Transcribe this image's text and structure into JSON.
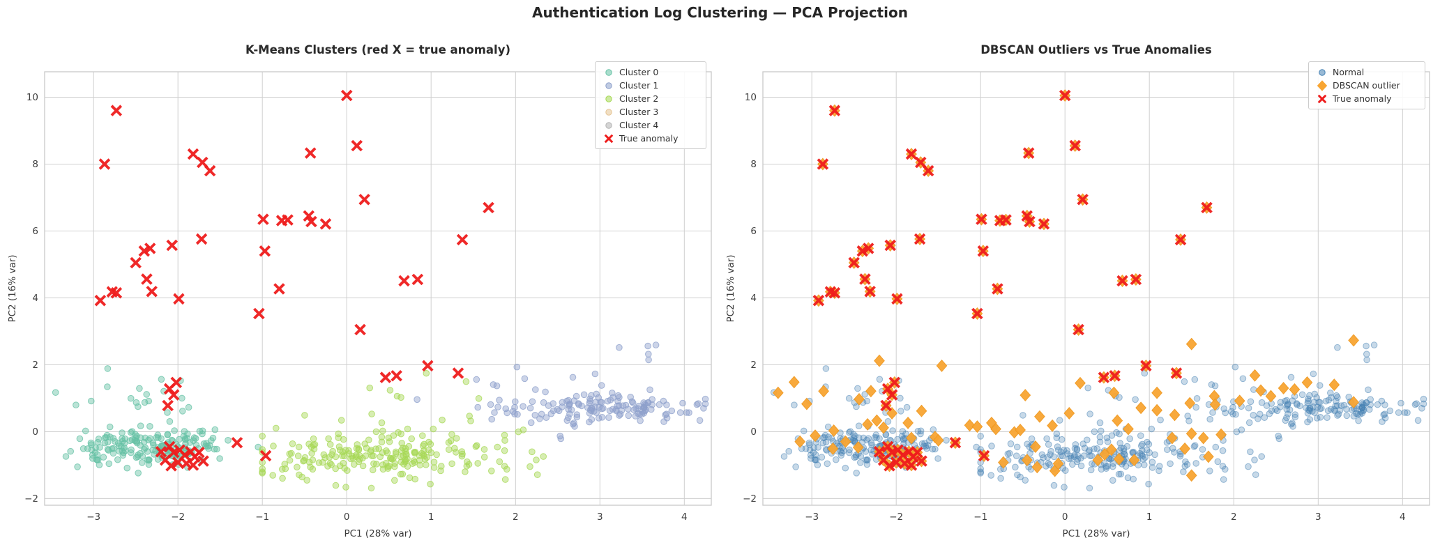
{
  "figure": {
    "suptitle": "Authentication Log Clustering — PCA Projection",
    "panels": [
      {
        "id": "kmeans",
        "title": "K-Means Clusters  (red X = true anomaly)",
        "xlabel": "PC1 (28% var)",
        "ylabel": "PC2 (16% var)",
        "legend": [
          {
            "label": "Cluster 0",
            "marker": "circle",
            "color": "#66c2a5"
          },
          {
            "label": "Cluster 1",
            "marker": "circle",
            "color": "#8da0cb"
          },
          {
            "label": "Cluster 2",
            "marker": "circle",
            "color": "#a6d854"
          },
          {
            "label": "Cluster 3",
            "marker": "circle",
            "color": "#e5c494"
          },
          {
            "label": "Cluster 4",
            "marker": "circle",
            "color": "#b3b3b3"
          },
          {
            "label": "True anomaly",
            "marker": "x",
            "color": "#ee1c1c"
          }
        ]
      },
      {
        "id": "dbscan",
        "title": "DBSCAN Outliers vs True Anomalies",
        "xlabel": "PC1 (28% var)",
        "ylabel": "PC2 (16% var)",
        "legend": [
          {
            "label": "Normal",
            "marker": "circle",
            "color": "#4682b4"
          },
          {
            "label": "DBSCAN outlier",
            "marker": "diamond",
            "color": "#f8a532"
          },
          {
            "label": "True anomaly",
            "marker": "x",
            "color": "#ee1c1c"
          }
        ]
      }
    ]
  },
  "chart_data": {
    "type": "scatter",
    "axes": {
      "xlim": [
        -3.58,
        4.32
      ],
      "ylim": [
        -2.2,
        10.76
      ],
      "xticks": [
        -3,
        -2,
        -1,
        0,
        1,
        2,
        3,
        4
      ],
      "yticks": [
        -2,
        0,
        2,
        4,
        6,
        8,
        10
      ],
      "grid": true,
      "grid_color": "#cfcfcf",
      "spine_color": "#c9c9c9"
    },
    "anomaly_color": "#ee1c1c",
    "anomalies": [
      [
        0.0,
        10.05
      ],
      [
        -2.73,
        9.6
      ],
      [
        -2.87,
        8.0
      ],
      [
        0.12,
        8.55
      ],
      [
        -1.82,
        8.3
      ],
      [
        -1.71,
        8.05
      ],
      [
        -1.62,
        7.8
      ],
      [
        -0.43,
        8.33
      ],
      [
        0.21,
        6.94
      ],
      [
        1.68,
        6.7
      ],
      [
        -0.99,
        6.35
      ],
      [
        -0.77,
        6.31
      ],
      [
        -0.7,
        6.33
      ],
      [
        -0.45,
        6.45
      ],
      [
        -0.42,
        6.28
      ],
      [
        -0.25,
        6.21
      ],
      [
        1.37,
        5.74
      ],
      [
        -1.72,
        5.76
      ],
      [
        -2.07,
        5.57
      ],
      [
        -2.33,
        5.48
      ],
      [
        -2.4,
        5.4
      ],
      [
        -2.5,
        5.05
      ],
      [
        -0.97,
        5.4
      ],
      [
        -2.37,
        4.56
      ],
      [
        -2.31,
        4.19
      ],
      [
        -2.78,
        4.18
      ],
      [
        -2.73,
        4.15
      ],
      [
        -2.92,
        3.92
      ],
      [
        -1.99,
        3.97
      ],
      [
        -0.8,
        4.27
      ],
      [
        0.68,
        4.51
      ],
      [
        0.84,
        4.55
      ],
      [
        -1.04,
        3.53
      ],
      [
        0.16,
        3.05
      ],
      [
        0.96,
        1.97
      ],
      [
        1.32,
        1.75
      ],
      [
        0.46,
        1.62
      ],
      [
        0.59,
        1.67
      ],
      [
        -2.02,
        1.47
      ],
      [
        -2.1,
        1.28
      ],
      [
        -2.05,
        1.1
      ],
      [
        -2.12,
        0.78
      ],
      [
        -1.3,
        -0.33
      ],
      [
        -0.96,
        -0.72
      ],
      [
        -2.2,
        -0.6
      ],
      [
        -2.1,
        -0.45
      ],
      [
        -2.05,
        -0.62
      ],
      [
        -1.98,
        -0.55
      ],
      [
        -1.92,
        -0.7
      ],
      [
        -1.85,
        -0.6
      ],
      [
        -1.8,
        -0.75
      ],
      [
        -1.75,
        -0.62
      ],
      [
        -2.15,
        -0.85
      ],
      [
        -2.0,
        -0.92
      ],
      [
        -1.9,
        -0.95
      ],
      [
        -1.82,
        -1.0
      ],
      [
        -2.08,
        -1.02
      ],
      [
        -1.7,
        -0.88
      ]
    ],
    "kmeans_clusters": [
      {
        "name": "Cluster 0",
        "color": "#66c2a5",
        "seed": 101,
        "components": [
          {
            "n": 175,
            "cx": -2.3,
            "cy": -0.45,
            "sx": 0.42,
            "sy": 0.27
          },
          {
            "n": 22,
            "cx": -2.45,
            "cy": 0.9,
            "sx": 0.55,
            "sy": 0.5
          }
        ],
        "clamp": {
          "x": [
            -3.45,
            -1.05
          ],
          "y": [
            -1.25,
            2.3
          ]
        }
      },
      {
        "name": "Cluster 1",
        "color": "#8da0cb",
        "seed": 202,
        "components": [
          {
            "n": 120,
            "cx": 3.1,
            "cy": 0.72,
            "sx": 0.55,
            "sy": 0.22
          },
          {
            "n": 35,
            "cx": 2.2,
            "cy": 0.85,
            "sx": 0.5,
            "sy": 0.35
          },
          {
            "n": 7,
            "cx": 2.8,
            "cy": 2.3,
            "sx": 0.6,
            "sy": 0.3
          }
        ],
        "clamp": {
          "x": [
            0.8,
            4.25
          ],
          "y": [
            -0.5,
            2.9
          ]
        }
      },
      {
        "name": "Cluster 2",
        "color": "#a6d854",
        "seed": 303,
        "components": [
          {
            "n": 215,
            "cx": 0.55,
            "cy": -0.75,
            "sx": 0.72,
            "sy": 0.36
          },
          {
            "n": 14,
            "cx": 0.9,
            "cy": 0.8,
            "sx": 0.8,
            "sy": 0.45
          }
        ],
        "clamp": {
          "x": [
            -1.0,
            2.9
          ],
          "y": [
            -1.8,
            1.8
          ]
        }
      },
      {
        "name": "Cluster 3",
        "color": "#e5c494",
        "seed": 404,
        "components": [],
        "clamp": {
          "x": [
            -3.5,
            4.2
          ],
          "y": [
            -2.0,
            10.5
          ]
        }
      },
      {
        "name": "Cluster 4",
        "color": "#b3b3b3",
        "seed": 505,
        "components": [],
        "clamp": {
          "x": [
            -3.5,
            4.2
          ],
          "y": [
            -2.0,
            10.5
          ]
        }
      }
    ],
    "dbscan": {
      "normal_color": "#4682b4",
      "outlier_color": "#f8a532",
      "outlier_edge_color": "#f0981f",
      "outlier_under_anomaly": true,
      "outliers": [
        [
          -3.4,
          1.16
        ],
        [
          -3.21,
          1.48
        ],
        [
          -2.86,
          1.21
        ],
        [
          -2.44,
          0.97
        ],
        [
          -2.3,
          1.21
        ],
        [
          -3.06,
          0.83
        ],
        [
          -2.74,
          0.03
        ],
        [
          -2.96,
          -0.12
        ],
        [
          -3.14,
          -0.3
        ],
        [
          -2.6,
          -0.3
        ],
        [
          -2.45,
          -0.47
        ],
        [
          -2.75,
          -0.51
        ],
        [
          -2.23,
          0.33
        ],
        [
          -2.34,
          0.22
        ],
        [
          -2.15,
          0.12
        ],
        [
          -1.86,
          0.26
        ],
        [
          -1.82,
          -0.19
        ],
        [
          -1.54,
          -0.16
        ],
        [
          -1.5,
          -0.26
        ],
        [
          -1.13,
          0.19
        ],
        [
          -1.04,
          0.15
        ],
        [
          -0.87,
          0.26
        ],
        [
          -0.82,
          0.08
        ],
        [
          -0.6,
          -0.02
        ],
        [
          -0.53,
          0.05
        ],
        [
          -0.73,
          -0.92
        ],
        [
          -0.45,
          -0.85
        ],
        [
          -0.33,
          -1.06
        ],
        [
          -0.12,
          -1.17
        ],
        [
          -0.08,
          -0.96
        ],
        [
          -2.2,
          2.12
        ],
        [
          -1.46,
          1.97
        ],
        [
          -0.47,
          1.09
        ],
        [
          0.18,
          1.45
        ],
        [
          0.58,
          1.16
        ],
        [
          0.9,
          0.71
        ],
        [
          1.09,
          1.16
        ],
        [
          1.09,
          0.64
        ],
        [
          1.3,
          0.5
        ],
        [
          1.48,
          0.85
        ],
        [
          1.77,
          1.06
        ],
        [
          1.78,
          0.81
        ],
        [
          2.07,
          0.92
        ],
        [
          2.32,
          1.23
        ],
        [
          2.44,
          1.06
        ],
        [
          2.59,
          1.3
        ],
        [
          2.72,
          1.26
        ],
        [
          2.87,
          1.47
        ],
        [
          3.42,
          0.88
        ],
        [
          0.62,
          0.33
        ],
        [
          0.75,
          0.08
        ],
        [
          1.5,
          -0.06
        ],
        [
          1.64,
          -0.19
        ],
        [
          1.85,
          -0.09
        ],
        [
          1.27,
          -0.19
        ],
        [
          1.42,
          -0.51
        ],
        [
          1.7,
          -0.75
        ],
        [
          1.5,
          -1.31
        ],
        [
          0.39,
          -0.85
        ],
        [
          0.55,
          -0.54
        ],
        [
          0.64,
          -0.82
        ],
        [
          0.47,
          -0.68
        ],
        [
          0.82,
          -0.85
        ],
        [
          1.5,
          2.62
        ],
        [
          3.42,
          2.73
        ],
        [
          2.25,
          1.68
        ],
        [
          3.19,
          1.4
        ],
        [
          -0.3,
          0.45
        ],
        [
          -0.15,
          0.18
        ],
        [
          0.05,
          0.55
        ],
        [
          -1.7,
          0.62
        ],
        [
          -2.05,
          0.55
        ],
        [
          -0.35,
          -0.45
        ]
      ]
    }
  }
}
